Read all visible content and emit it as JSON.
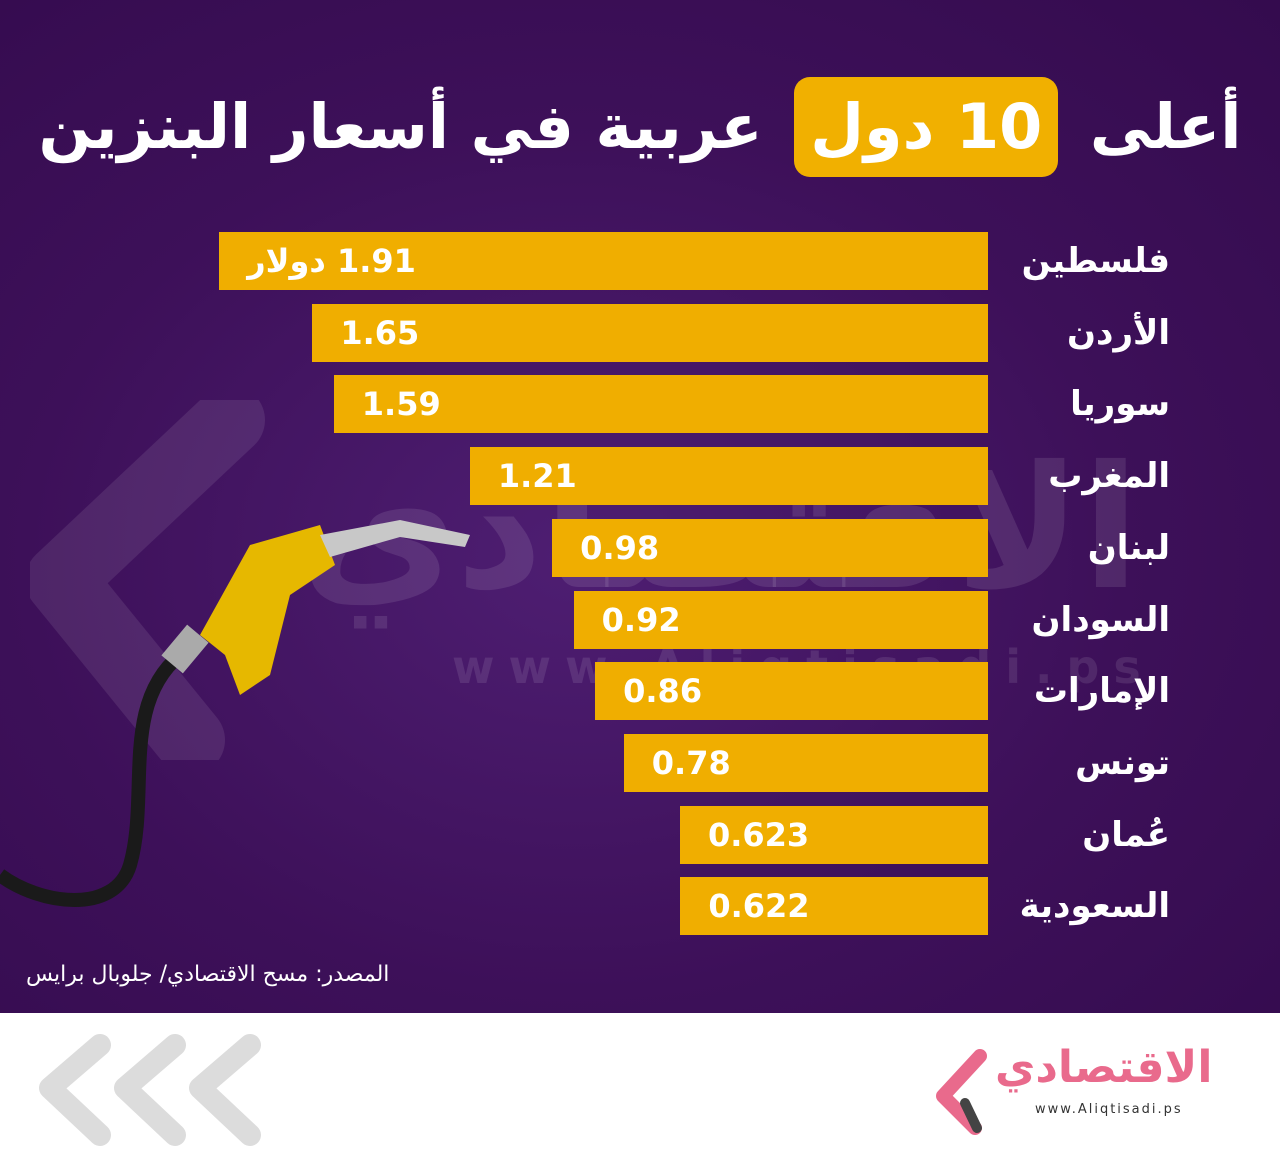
{
  "title": {
    "before": "أعلى",
    "highlight": "10 دول",
    "after": "عربية في أسعار البنزين"
  },
  "watermark": {
    "arabic": "الاقتصادي",
    "url": "www.Aliqtisadi.ps"
  },
  "source": "المصدر: مسح الاقتصادي/ جلوبال برايس",
  "logo": {
    "arabic": "الاقتصادي",
    "url": "www.Aliqtisadi.ps"
  },
  "colors": {
    "background": "#3d1059",
    "bar": "#f0ae00",
    "text": "#ffffff",
    "logo": "#e96a8c"
  },
  "chart_data": {
    "type": "bar",
    "orientation": "horizontal",
    "unit": "دولار",
    "title": "أعلى 10 دول عربية في أسعار البنزين",
    "categories": [
      "فلسطين",
      "الأردن",
      "سوريا",
      "المغرب",
      "لبنان",
      "السودان",
      "الإمارات",
      "تونس",
      "عُمان",
      "السعودية"
    ],
    "values": [
      1.91,
      1.65,
      1.59,
      1.21,
      0.98,
      0.92,
      0.86,
      0.78,
      0.623,
      0.622
    ],
    "labels": [
      "1.91 دولار",
      "1.65",
      "1.59",
      "1.21",
      "0.98",
      "0.92",
      "0.86",
      "0.78",
      "0.623",
      "0.622"
    ]
  }
}
